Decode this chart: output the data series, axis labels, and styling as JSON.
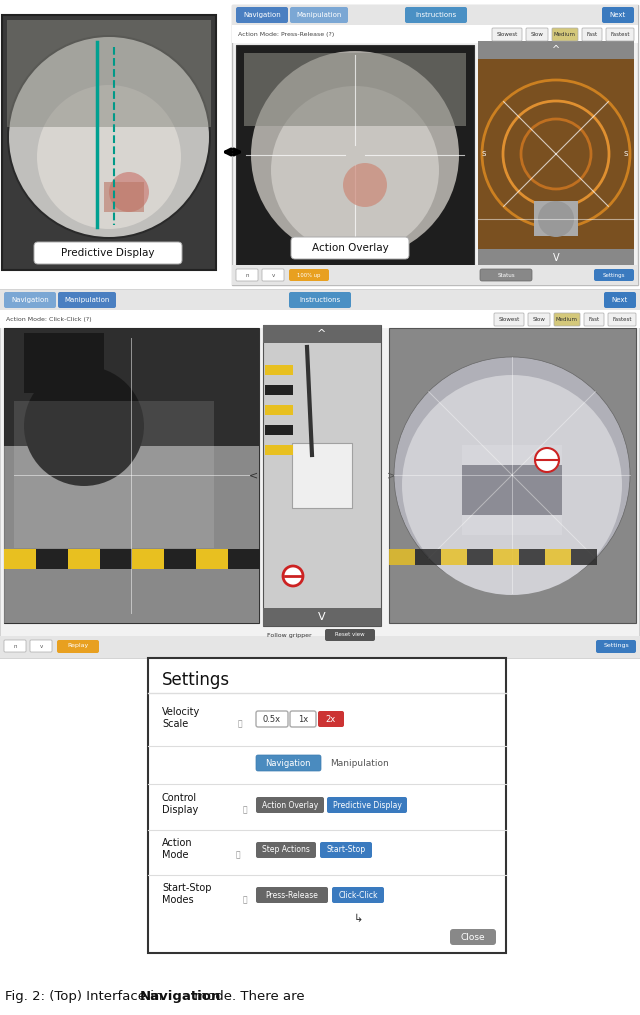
{
  "bg_color": "#ffffff",
  "figure_width": 6.4,
  "figure_height": 10.15,
  "caption_parts": [
    {
      "text": "Fig. 2: (Top) Interface in ",
      "bold": false
    },
    {
      "text": "Navigation",
      "bold": true
    },
    {
      "text": " mode. There are",
      "bold": false
    }
  ],
  "caption_fontsize": 9.5,
  "speed_labels": [
    "Slowest",
    "Slow",
    "Medium",
    "Fast",
    "Fastest"
  ],
  "speed_colors": [
    "#f0f0f0",
    "#f0f0f0",
    "#d4c87a",
    "#f0f0f0",
    "#f0f0f0"
  ],
  "nav_tab_color": "#4a7fc1",
  "man_tab_color": "#7ba7d4",
  "instr_btn_color": "#4a90c4",
  "next_btn_color": "#3a7abf",
  "settings_btn_color": "#3a7abf",
  "yellow_btn_color": "#e8a020",
  "red_btn_color": "#cc3333",
  "close_btn_color": "#888888"
}
